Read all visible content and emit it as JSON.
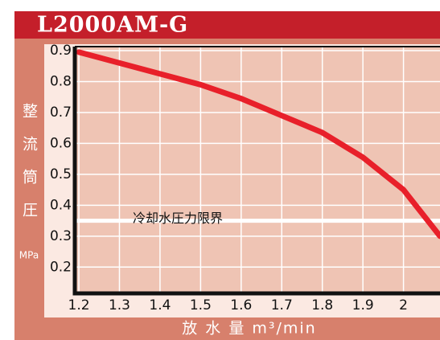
{
  "chart_data": {
    "type": "line",
    "title": "L2000AM-G",
    "y_label": "整流筒圧",
    "y_unit": "MPa",
    "x_label": "放 水 量 m³/min",
    "x": [
      1.2,
      1.3,
      1.4,
      1.5,
      1.6,
      1.7,
      1.8,
      1.9,
      2.0,
      2.09
    ],
    "series": [
      {
        "name": "L2000AM-G",
        "color": "#e8202a",
        "values": [
          0.895,
          0.86,
          0.825,
          0.79,
          0.745,
          0.69,
          0.635,
          0.555,
          0.45,
          0.3
        ]
      }
    ],
    "xlim": [
      1.19,
      2.09
    ],
    "ylim": [
      0.115,
      0.913
    ],
    "xticks": [
      1.2,
      1.3,
      1.4,
      1.5,
      1.6,
      1.7,
      1.8,
      1.9,
      2.0
    ],
    "yticks": [
      0.2,
      0.3,
      0.4,
      0.5,
      0.6,
      0.7,
      0.8,
      0.9
    ],
    "grid": true,
    "annotation": {
      "text": "冷却水圧力限界",
      "value": 0.35
    }
  }
}
